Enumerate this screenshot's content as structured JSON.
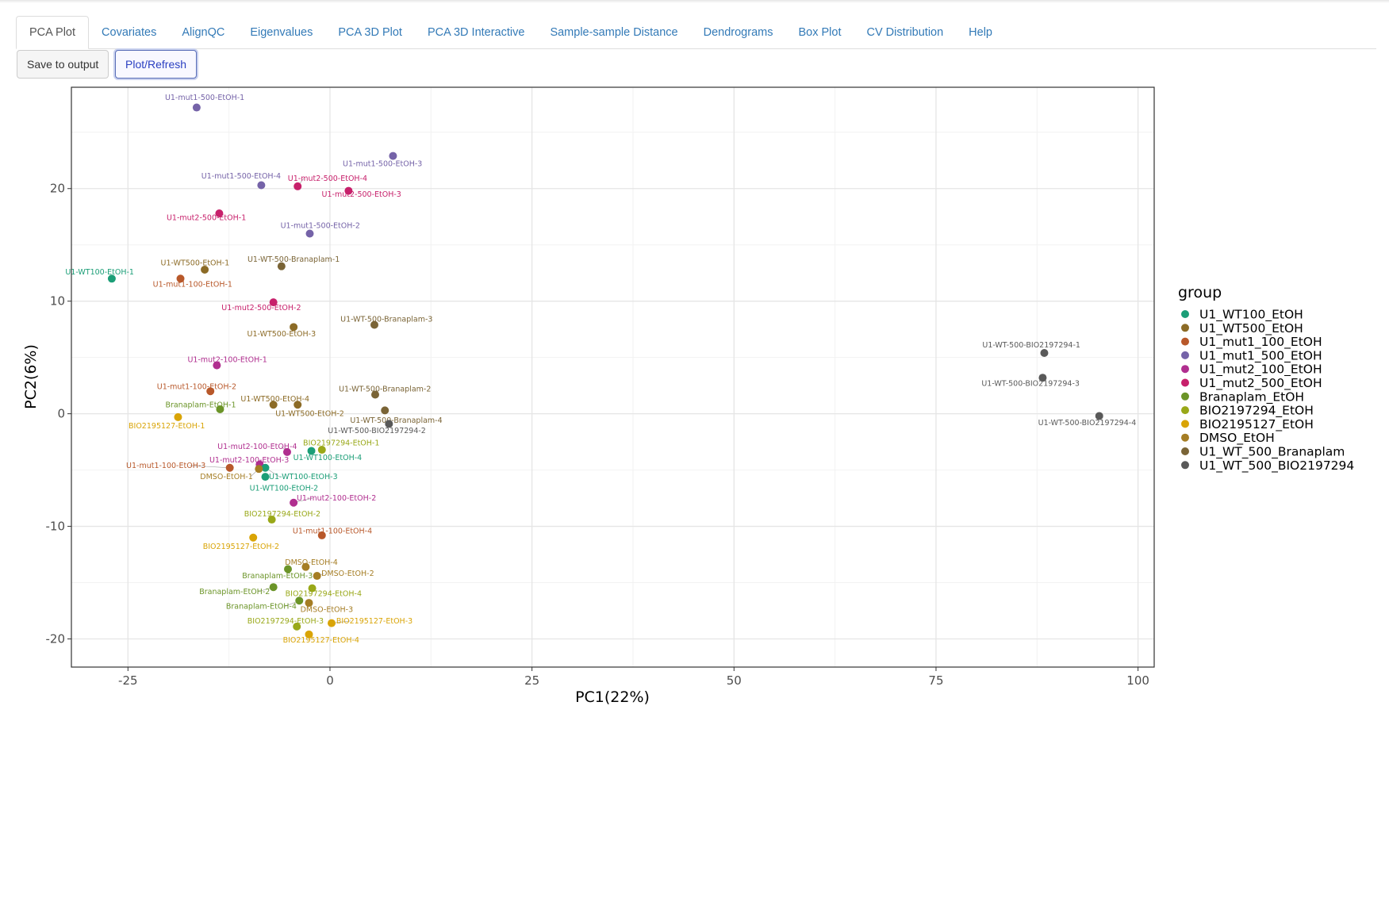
{
  "tabs": [
    {
      "label": "PCA Plot",
      "active": true
    },
    {
      "label": "Covariates"
    },
    {
      "label": "AlignQC"
    },
    {
      "label": "Eigenvalues"
    },
    {
      "label": "PCA 3D Plot"
    },
    {
      "label": "PCA 3D Interactive"
    },
    {
      "label": "Sample-sample Distance"
    },
    {
      "label": "Dendrograms"
    },
    {
      "label": "Box Plot"
    },
    {
      "label": "CV Distribution"
    },
    {
      "label": "Help"
    }
  ],
  "toolbar": {
    "save_label": "Save to output",
    "plot_label": "Plot/Refresh"
  },
  "chart_data": {
    "type": "scatter",
    "xlabel": "PC1(22%)",
    "ylabel": "PC2(6%)",
    "xlim": [
      -32,
      102
    ],
    "ylim": [
      -22.5,
      29
    ],
    "xticks": [
      -25,
      0,
      25,
      50,
      75,
      100
    ],
    "yticks": [
      -20,
      -10,
      0,
      10,
      20
    ],
    "grid": true,
    "legend_title": "group",
    "legend_position": "right",
    "groups": [
      {
        "name": "U1_WT100_EtOH",
        "color": "#1b9e77"
      },
      {
        "name": "U1_WT500_EtOH",
        "color": "#8c6b26"
      },
      {
        "name": "U1_mut1_100_EtOH",
        "color": "#b8582a"
      },
      {
        "name": "U1_mut1_500_EtOH",
        "color": "#7563a8"
      },
      {
        "name": "U1_mut2_100_EtOH",
        "color": "#b02e8f"
      },
      {
        "name": "U1_mut2_500_EtOH",
        "color": "#c7206b"
      },
      {
        "name": "Branaplam_EtOH",
        "color": "#6b9428"
      },
      {
        "name": "BIO2197294_EtOH",
        "color": "#99a818"
      },
      {
        "name": "BIO2195127_EtOH",
        "color": "#d9a406"
      },
      {
        "name": "DMSO_EtOH",
        "color": "#a57d24"
      },
      {
        "name": "U1_WT_500_Branaplam",
        "color": "#7a6436"
      },
      {
        "name": "U1_WT_500_BIO2197294",
        "color": "#595959"
      }
    ],
    "points": [
      {
        "label": "U1-mut1-500-EtOH-1",
        "group": 3,
        "x": -16.5,
        "y": 27.2,
        "lx": -15.5,
        "ly": 28.1
      },
      {
        "label": "U1-mut1-500-EtOH-3",
        "group": 3,
        "x": 7.8,
        "y": 22.9,
        "lx": 6.5,
        "ly": 22.2
      },
      {
        "label": "U1-mut1-500-EtOH-4",
        "group": 3,
        "x": -8.5,
        "y": 20.3,
        "lx": -11,
        "ly": 21.1
      },
      {
        "label": "U1-mut2-500-EtOH-4",
        "group": 5,
        "x": -4,
        "y": 20.2,
        "lx": -0.3,
        "ly": 20.9
      },
      {
        "label": "U1-mut2-500-EtOH-3",
        "group": 5,
        "x": 2.3,
        "y": 19.8,
        "lx": 3.9,
        "ly": 19.5
      },
      {
        "label": "U1-mut2-500-EtOH-1",
        "group": 5,
        "x": -13.7,
        "y": 17.8,
        "lx": -15.3,
        "ly": 17.4
      },
      {
        "label": "U1-mut1-500-EtOH-2",
        "group": 3,
        "x": -2.5,
        "y": 16,
        "lx": -1.2,
        "ly": 16.7
      },
      {
        "label": "U1-WT100-EtOH-1",
        "group": 0,
        "x": -27,
        "y": 12,
        "lx": -28.5,
        "ly": 12.6
      },
      {
        "label": "U1-WT500-EtOH-1",
        "group": 1,
        "x": -15.5,
        "y": 12.8,
        "lx": -16.7,
        "ly": 13.4
      },
      {
        "label": "U1-mut1-100-EtOH-1",
        "group": 2,
        "x": -18.5,
        "y": 12,
        "lx": -17,
        "ly": 11.5
      },
      {
        "label": "U1-WT-500-Branaplam-1",
        "group": 10,
        "x": -6,
        "y": 13.1,
        "lx": -4.5,
        "ly": 13.7
      },
      {
        "label": "U1-mut2-500-EtOH-2",
        "group": 5,
        "x": -7,
        "y": 9.9,
        "lx": -8.5,
        "ly": 9.4
      },
      {
        "label": "U1-WT500-EtOH-3",
        "group": 1,
        "x": -4.5,
        "y": 7.7,
        "lx": -6,
        "ly": 7.1
      },
      {
        "label": "U1-WT-500-Branaplam-3",
        "group": 10,
        "x": 5.5,
        "y": 7.9,
        "lx": 7,
        "ly": 8.4
      },
      {
        "label": "U1-mut2-100-EtOH-1",
        "group": 4,
        "x": -14,
        "y": 4.3,
        "lx": -12.7,
        "ly": 4.8
      },
      {
        "label": "U1-mut1-100-EtOH-2",
        "group": 2,
        "x": -14.8,
        "y": 2,
        "lx": -16.5,
        "ly": 2.4
      },
      {
        "label": "U1-WT-500-Branaplam-2",
        "group": 10,
        "x": 5.6,
        "y": 1.7,
        "lx": 6.8,
        "ly": 2.2
      },
      {
        "label": "Branaplam-EtOH-1",
        "group": 6,
        "x": -13.6,
        "y": 0.4,
        "lx": -16,
        "ly": 0.8
      },
      {
        "label": "U1-WT500-EtOH-4",
        "group": 1,
        "x": -7,
        "y": 0.8,
        "lx": -6.8,
        "ly": 1.3
      },
      {
        "label": "U1-WT500-EtOH-2",
        "group": 1,
        "x": -4,
        "y": 0.8,
        "lx": -2.5,
        "ly": 0
      },
      {
        "label": "U1-WT-500-Branaplam-4",
        "group": 10,
        "x": 6.8,
        "y": 0.3,
        "lx": 8.2,
        "ly": -0.6
      },
      {
        "label": "BIO2195127-EtOH-1",
        "group": 8,
        "x": -18.8,
        "y": -0.3,
        "lx": -20.2,
        "ly": -1.1
      },
      {
        "label": "U1-WT-500-BIO2197294-2",
        "group": 11,
        "x": 7.3,
        "y": -0.9,
        "lx": 5.8,
        "ly": -1.5
      },
      {
        "label": "U1-WT-500-BIO2197294-1",
        "group": 11,
        "x": 88.4,
        "y": 5.4,
        "lx": 86.8,
        "ly": 6.1
      },
      {
        "label": "U1-WT-500-BIO2197294-3",
        "group": 11,
        "x": 88.2,
        "y": 3.2,
        "lx": 86.7,
        "ly": 2.7
      },
      {
        "label": "U1-WT-500-BIO2197294-4",
        "group": 11,
        "x": 95.2,
        "y": -0.2,
        "lx": 93.7,
        "ly": -0.8
      },
      {
        "label": "BIO2197294-EtOH-1",
        "group": 7,
        "x": -1,
        "y": -3.2,
        "lx": 1.4,
        "ly": -2.6
      },
      {
        "label": "U1-mut2-100-EtOH-4",
        "group": 4,
        "x": -5.3,
        "y": -3.4,
        "lx": -9,
        "ly": -2.9
      },
      {
        "label": "U1-WT100-EtOH-4",
        "group": 0,
        "x": -2.3,
        "y": -3.3,
        "lx": -0.3,
        "ly": -3.9
      },
      {
        "label": "U1-mut2-100-EtOH-3",
        "group": 4,
        "x": -8.7,
        "y": -4.5,
        "lx": -10,
        "ly": -4.1
      },
      {
        "label": "U1-mut1-100-EtOH-3",
        "group": 2,
        "x": -12.4,
        "y": -4.8,
        "lx": -20.3,
        "ly": -4.6
      },
      {
        "label": "U1-WT100-EtOH-3",
        "group": 0,
        "x": -8,
        "y": -4.8,
        "lx": -3.3,
        "ly": -5.6
      },
      {
        "label": "DMSO-EtOH-1",
        "group": 9,
        "x": -8.8,
        "y": -4.9,
        "lx": -12.8,
        "ly": -5.6
      },
      {
        "label": "U1-WT100-EtOH-2",
        "group": 0,
        "x": -8,
        "y": -5.6,
        "lx": -5.7,
        "ly": -6.6
      },
      {
        "label": "U1-mut2-100-EtOH-2",
        "group": 4,
        "x": -4.5,
        "y": -7.9,
        "lx": 0.8,
        "ly": -7.5
      },
      {
        "label": "BIO2197294-EtOH-2",
        "group": 7,
        "x": -7.2,
        "y": -9.4,
        "lx": -5.9,
        "ly": -8.9
      },
      {
        "label": "BIO2195127-EtOH-2",
        "group": 8,
        "x": -9.5,
        "y": -11,
        "lx": -11,
        "ly": -11.8
      },
      {
        "label": "U1-mut1-100-EtOH-4",
        "group": 2,
        "x": -1,
        "y": -10.8,
        "lx": 0.3,
        "ly": -10.4
      },
      {
        "label": "DMSO-EtOH-4",
        "group": 9,
        "x": -3,
        "y": -13.6,
        "lx": -2.3,
        "ly": -13.2
      },
      {
        "label": "Branaplam-EtOH-3",
        "group": 6,
        "x": -5.2,
        "y": -13.8,
        "lx": -6.5,
        "ly": -14.4
      },
      {
        "label": "DMSO-EtOH-2",
        "group": 9,
        "x": -1.6,
        "y": -14.4,
        "lx": 2.2,
        "ly": -14.2
      },
      {
        "label": "Branaplam-EtOH-2",
        "group": 6,
        "x": -7,
        "y": -15.4,
        "lx": -11.8,
        "ly": -15.8
      },
      {
        "label": "BIO2197294-EtOH-4",
        "group": 7,
        "x": -2.2,
        "y": -15.5,
        "lx": -0.8,
        "ly": -16
      },
      {
        "label": "Branaplam-EtOH-4",
        "group": 6,
        "x": -3.8,
        "y": -16.6,
        "lx": -8.5,
        "ly": -17.1
      },
      {
        "label": "DMSO-EtOH-3",
        "group": 9,
        "x": -2.6,
        "y": -16.8,
        "lx": -0.4,
        "ly": -17.4
      },
      {
        "label": "BIO2197294-EtOH-3",
        "group": 7,
        "x": -4.1,
        "y": -18.9,
        "lx": -5.5,
        "ly": -18.4
      },
      {
        "label": "BIO2195127-EtOH-3",
        "group": 8,
        "x": 0.2,
        "y": -18.6,
        "lx": 5.5,
        "ly": -18.4
      },
      {
        "label": "BIO2195127-EtOH-4",
        "group": 8,
        "x": -2.6,
        "y": -19.6,
        "lx": -1.1,
        "ly": -20.1
      }
    ]
  }
}
